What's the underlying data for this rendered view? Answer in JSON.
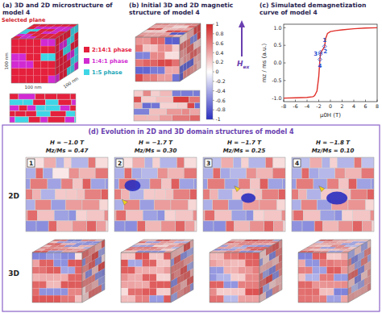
{
  "panel_a": {
    "title": "(a) 3D and 2D microstructure of model 4",
    "selected_plane": "Selected plane",
    "scale_labels": [
      "100 nm",
      "100 nm",
      "100 nm"
    ],
    "phases": [
      {
        "label": "2:14:1 phase",
        "color": "#e4203c"
      },
      {
        "label": "1:4:1 phase",
        "color": "#d22ad2"
      },
      {
        "label": "1:5 phase",
        "color": "#3ed6e6"
      }
    ]
  },
  "panel_b": {
    "title": "(b) Initial 3D and 2D magnetic structure of model 4",
    "colorbar": {
      "range": [
        -1,
        1
      ],
      "ticks": [
        1,
        0.8,
        0.6,
        0.4,
        0.2,
        0,
        -0.2,
        -0.4,
        -0.6,
        -0.8,
        -1
      ],
      "colors": [
        "#2a2fc0",
        "#ffffff",
        "#d42626"
      ]
    },
    "field_label": {
      "main": "H",
      "sub": "ex"
    }
  },
  "chart_data": {
    "type": "line",
    "title": "(c) Simulated demagnetization curve of model 4",
    "x_label": "μ0H (T)",
    "y_label": "mz / ms (a.u.)",
    "series": [
      {
        "color": "#e0302a",
        "x": [
          8,
          6,
          4,
          2,
          1,
          0,
          -0.5,
          -0.8,
          -1.0,
          -1.3,
          -1.6,
          -1.7,
          -1.8,
          -2.0,
          -2.3,
          -2.7,
          -3,
          -4,
          -6,
          -8
        ],
        "values": [
          1.0,
          0.99,
          0.97,
          0.94,
          0.92,
          0.89,
          0.84,
          0.7,
          0.47,
          0.38,
          0.32,
          0.27,
          0.1,
          -0.4,
          -0.8,
          -0.93,
          -0.96,
          -0.98,
          -0.99,
          -1.0
        ]
      }
    ],
    "annotations": [
      {
        "text": "1",
        "x": -1.0,
        "y": 0.47
      },
      {
        "text": "2",
        "x": -1.7,
        "y": 0.3
      },
      {
        "text": "3",
        "x": -1.7,
        "y": 0.25
      },
      {
        "text": "4",
        "x": -1.8,
        "y": 0.1
      }
    ],
    "annotation_color": "#2a4fd0",
    "xlim": [
      -8,
      8
    ],
    "xticks": [
      -8,
      -6,
      -4,
      -2,
      0,
      2,
      4,
      6,
      8
    ],
    "ylim": [
      -1.1,
      1.1
    ],
    "yticks": [
      {
        "value": -1,
        "label": "-1.0"
      },
      {
        "value": -0.5,
        "label": "-0.5"
      },
      {
        "value": 0,
        "label": "0.0"
      },
      {
        "value": 0.5,
        "label": "0.5"
      },
      {
        "value": 1,
        "label": "1.0"
      }
    ],
    "grid": false
  },
  "panel_d": {
    "title": "(d) Evolution in 2D and 3D domain structures of model 4",
    "row_labels": [
      "2D",
      "3D"
    ],
    "frames": [
      {
        "index": "1",
        "field": "H = −1.0 T",
        "ratio": "Mz/Ms = 0.47"
      },
      {
        "index": "2",
        "field": "H = −1.7 T",
        "ratio": "Mz/Ms = 0.30"
      },
      {
        "index": "3",
        "field": "H = −1.7 T",
        "ratio": "Mz/Ms = 0.25"
      },
      {
        "index": "4",
        "field": "H = −1.8 T",
        "ratio": "Mz/Ms = 0.10"
      }
    ]
  }
}
